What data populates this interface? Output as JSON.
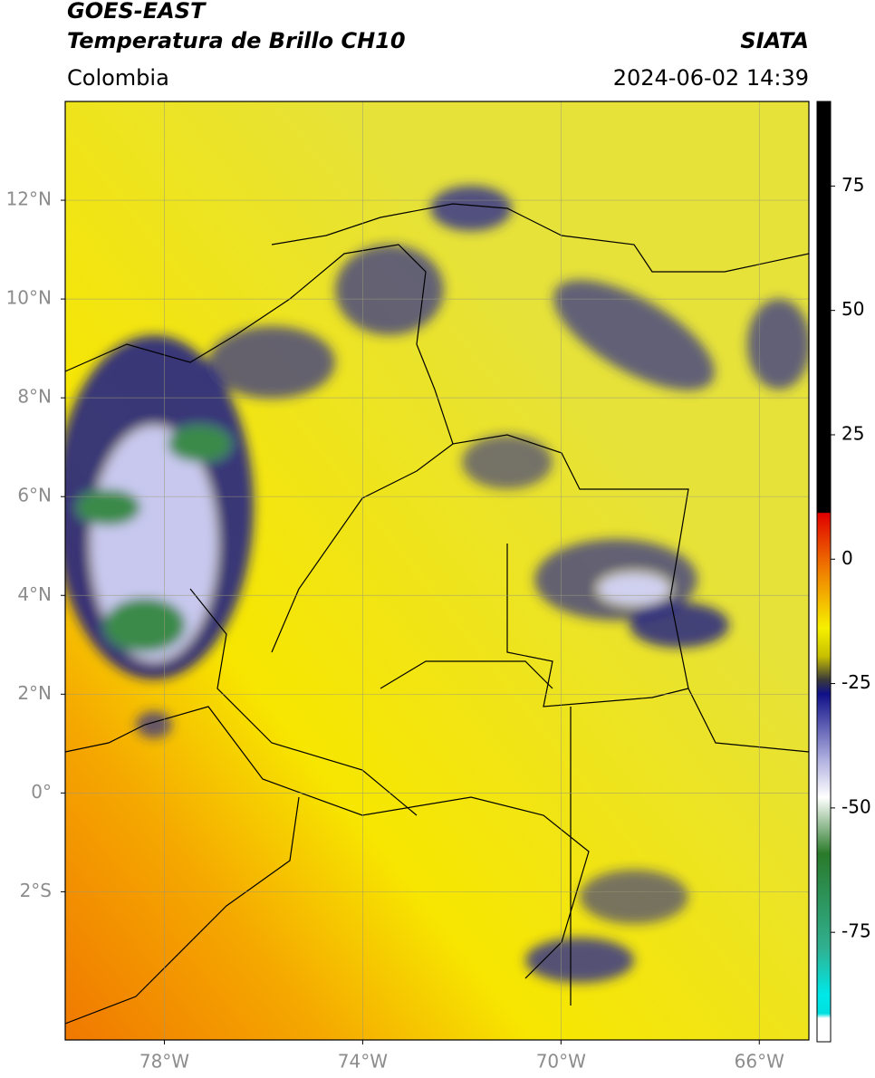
{
  "header": {
    "title": "GOES-EAST",
    "subtitle": "Temperatura de Brillo CH10",
    "source": "SIATA",
    "region": "Colombia",
    "datetime": "2024-06-02 14:39"
  },
  "map": {
    "xlim": [
      -80,
      -65
    ],
    "ylim": [
      -5,
      14
    ],
    "xticks": [
      {
        "value": -78,
        "label": "78°W"
      },
      {
        "value": -74,
        "label": "74°W"
      },
      {
        "value": -70,
        "label": "70°W"
      },
      {
        "value": -66,
        "label": "66°W"
      }
    ],
    "yticks": [
      {
        "value": 12,
        "label": "12°N"
      },
      {
        "value": 10,
        "label": "10°N"
      },
      {
        "value": 8,
        "label": "8°N"
      },
      {
        "value": 6,
        "label": "6°N"
      },
      {
        "value": 4,
        "label": "4°N"
      },
      {
        "value": 2,
        "label": "2°N"
      },
      {
        "value": 0,
        "label": "0°"
      },
      {
        "value": -2,
        "label": "2°S"
      }
    ],
    "grid": true
  },
  "colorbar": {
    "lim": [
      -97,
      92
    ],
    "ticks": [
      75,
      50,
      25,
      0,
      -25,
      -50,
      -75
    ]
  }
}
